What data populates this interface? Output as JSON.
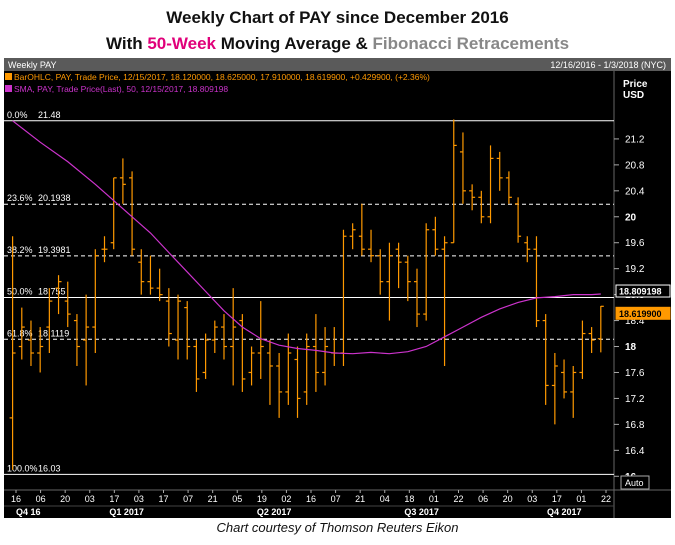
{
  "header": {
    "line1": "Weekly Chart of PAY since December 2016",
    "line2_prefix": "With ",
    "line2_highlight1": "50-Week",
    "line2_mid": " Moving Average & ",
    "line2_highlight2": "Fibonacci Retracements"
  },
  "caption": "Chart courtesy of Thomson Reuters Eikon",
  "chart_data": {
    "type": "ohlc",
    "panel_title": "Weekly PAY",
    "date_range": "12/16/2016 - 1/3/2018 (NYC)",
    "legend": [
      "BarOHLC, PAY, Trade Price, 12/15/2017, 18.120000, 18.625000, 17.910000, 18.619900, +0.429900, (+2.36%)",
      "SMA, PAY, Trade Price(Last), 50, 12/15/2017, 18.809198"
    ],
    "y_axis_title": "Price",
    "y_axis_unit": "USD",
    "yticks": [
      "21.2",
      "20.8",
      "20.4",
      "20",
      "19.6",
      "19.2",
      "18.8",
      "18.4",
      "18",
      "17.6",
      "17.2",
      "16.8",
      "16.4",
      "16"
    ],
    "yrange": [
      15.85,
      21.8
    ],
    "auto_label": "Auto",
    "fib_levels": [
      {
        "label": "0.0%",
        "value": 21.48,
        "value_text": "21.48"
      },
      {
        "label": "23.6%",
        "value": 20.1938,
        "value_text": "20.1938"
      },
      {
        "label": "38.2%",
        "value": 19.3981,
        "value_text": "19.3981"
      },
      {
        "label": "50.0%",
        "value": 18.755,
        "value_text": "18.755"
      },
      {
        "label": "61.8%",
        "value": 18.1119,
        "value_text": "18.1119"
      },
      {
        "label": "100.0%",
        "value": 16.03,
        "value_text": "16.03"
      }
    ],
    "last_values": [
      {
        "value": 18.809198,
        "text": "18.809198",
        "color": "#ffffff"
      },
      {
        "value": 18.6199,
        "text": "18.619900",
        "color": "#ff9900"
      }
    ],
    "x_tick_labels": [
      "16",
      "06",
      "20",
      "03",
      "17",
      "03",
      "17",
      "07",
      "21",
      "05",
      "19",
      "02",
      "16",
      "07",
      "21",
      "04",
      "18",
      "01",
      "22",
      "06",
      "20",
      "03",
      "17",
      "01",
      "22"
    ],
    "quarter_labels": [
      "Q4 16",
      "Q1 2017",
      "Q2 2017",
      "Q3 2017",
      "Q4 2017"
    ],
    "bars": [
      {
        "o": 16.9,
        "h": 19.7,
        "l": 16.1,
        "c": 17.9
      },
      {
        "o": 18.0,
        "h": 18.6,
        "l": 17.8,
        "c": 18.3
      },
      {
        "o": 18.1,
        "h": 18.4,
        "l": 17.7,
        "c": 17.9
      },
      {
        "o": 17.9,
        "h": 18.3,
        "l": 17.6,
        "c": 18.0
      },
      {
        "o": 18.3,
        "h": 18.9,
        "l": 17.9,
        "c": 18.7
      },
      {
        "o": 18.9,
        "h": 19.1,
        "l": 18.5,
        "c": 19.0
      },
      {
        "o": 18.7,
        "h": 19.0,
        "l": 18.3,
        "c": 18.5
      },
      {
        "o": 18.4,
        "h": 18.5,
        "l": 17.7,
        "c": 18.0
      },
      {
        "o": 18.1,
        "h": 18.8,
        "l": 17.4,
        "c": 18.3
      },
      {
        "o": 18.3,
        "h": 19.5,
        "l": 17.9,
        "c": 19.4
      },
      {
        "o": 19.5,
        "h": 19.7,
        "l": 19.3,
        "c": 19.5
      },
      {
        "o": 19.6,
        "h": 20.6,
        "l": 19.5,
        "c": 20.6
      },
      {
        "o": 20.6,
        "h": 20.9,
        "l": 20.2,
        "c": 20.5
      },
      {
        "o": 20.6,
        "h": 20.7,
        "l": 19.4,
        "c": 19.5
      },
      {
        "o": 19.3,
        "h": 19.5,
        "l": 18.8,
        "c": 19.0
      },
      {
        "o": 19.0,
        "h": 19.4,
        "l": 18.8,
        "c": 18.9
      },
      {
        "o": 18.9,
        "h": 19.2,
        "l": 18.7,
        "c": 18.8
      },
      {
        "o": 18.7,
        "h": 18.9,
        "l": 18.0,
        "c": 18.2
      },
      {
        "o": 18.1,
        "h": 18.8,
        "l": 17.8,
        "c": 18.7
      },
      {
        "o": 18.6,
        "h": 18.7,
        "l": 17.8,
        "c": 18.0
      },
      {
        "o": 18.0,
        "h": 18.1,
        "l": 17.3,
        "c": 17.5
      },
      {
        "o": 17.6,
        "h": 18.2,
        "l": 17.5,
        "c": 18.1
      },
      {
        "o": 18.1,
        "h": 18.4,
        "l": 17.9,
        "c": 18.3
      },
      {
        "o": 18.3,
        "h": 18.5,
        "l": 17.8,
        "c": 18.0
      },
      {
        "o": 18.0,
        "h": 18.9,
        "l": 17.4,
        "c": 18.3
      },
      {
        "o": 18.4,
        "h": 18.5,
        "l": 17.3,
        "c": 17.5
      },
      {
        "o": 17.6,
        "h": 18.0,
        "l": 17.4,
        "c": 17.9
      },
      {
        "o": 17.9,
        "h": 18.7,
        "l": 17.5,
        "c": 18.0
      },
      {
        "o": 17.9,
        "h": 18.1,
        "l": 17.1,
        "c": 17.7
      },
      {
        "o": 17.7,
        "h": 17.9,
        "l": 16.9,
        "c": 17.3
      },
      {
        "o": 17.3,
        "h": 18.2,
        "l": 17.1,
        "c": 17.9
      },
      {
        "o": 17.8,
        "h": 18.0,
        "l": 16.9,
        "c": 17.2
      },
      {
        "o": 17.3,
        "h": 18.2,
        "l": 17.1,
        "c": 18.0
      },
      {
        "o": 18.0,
        "h": 18.5,
        "l": 17.3,
        "c": 17.6
      },
      {
        "o": 17.6,
        "h": 18.3,
        "l": 17.4,
        "c": 18.0
      },
      {
        "o": 17.9,
        "h": 18.3,
        "l": 17.7,
        "c": 17.9
      },
      {
        "o": 17.9,
        "h": 19.8,
        "l": 17.7,
        "c": 19.7
      },
      {
        "o": 19.7,
        "h": 19.9,
        "l": 19.5,
        "c": 19.8
      },
      {
        "o": 19.7,
        "h": 20.2,
        "l": 19.4,
        "c": 19.5
      },
      {
        "o": 19.5,
        "h": 19.8,
        "l": 19.3,
        "c": 19.4
      },
      {
        "o": 19.4,
        "h": 19.5,
        "l": 18.8,
        "c": 19.0
      },
      {
        "o": 19.0,
        "h": 19.6,
        "l": 18.4,
        "c": 19.4
      },
      {
        "o": 19.5,
        "h": 19.6,
        "l": 18.9,
        "c": 19.3
      },
      {
        "o": 19.3,
        "h": 19.4,
        "l": 18.7,
        "c": 19.0
      },
      {
        "o": 19.0,
        "h": 19.2,
        "l": 18.3,
        "c": 18.5
      },
      {
        "o": 18.5,
        "h": 19.9,
        "l": 18.4,
        "c": 19.8
      },
      {
        "o": 19.8,
        "h": 20.0,
        "l": 19.4,
        "c": 19.5
      },
      {
        "o": 19.5,
        "h": 19.7,
        "l": 17.7,
        "c": 19.6
      },
      {
        "o": 19.6,
        "h": 21.5,
        "l": 19.6,
        "c": 21.1
      },
      {
        "o": 21.0,
        "h": 21.3,
        "l": 20.2,
        "c": 20.4
      },
      {
        "o": 20.4,
        "h": 20.5,
        "l": 20.1,
        "c": 20.3
      },
      {
        "o": 20.3,
        "h": 20.4,
        "l": 19.9,
        "c": 20.0
      },
      {
        "o": 20.0,
        "h": 21.1,
        "l": 19.9,
        "c": 20.9
      },
      {
        "o": 20.9,
        "h": 21.0,
        "l": 20.4,
        "c": 20.6
      },
      {
        "o": 20.6,
        "h": 20.7,
        "l": 20.2,
        "c": 20.3
      },
      {
        "o": 20.2,
        "h": 20.3,
        "l": 19.6,
        "c": 19.7
      },
      {
        "o": 19.6,
        "h": 19.7,
        "l": 19.3,
        "c": 19.5
      },
      {
        "o": 19.5,
        "h": 19.7,
        "l": 18.3,
        "c": 18.4
      },
      {
        "o": 18.4,
        "h": 18.5,
        "l": 17.1,
        "c": 17.4
      },
      {
        "o": 17.4,
        "h": 17.9,
        "l": 16.8,
        "c": 17.7
      },
      {
        "o": 17.6,
        "h": 17.8,
        "l": 17.2,
        "c": 17.3
      },
      {
        "o": 17.3,
        "h": 17.7,
        "l": 16.9,
        "c": 17.6
      },
      {
        "o": 17.6,
        "h": 18.4,
        "l": 17.5,
        "c": 18.2
      },
      {
        "o": 18.2,
        "h": 18.3,
        "l": 17.9,
        "c": 18.1
      },
      {
        "o": 18.12,
        "h": 18.625,
        "l": 17.91,
        "c": 18.6199
      }
    ],
    "sma_points": [
      {
        "bar": 0,
        "v": 21.48
      },
      {
        "bar": 3,
        "v": 21.15
      },
      {
        "bar": 6,
        "v": 20.85
      },
      {
        "bar": 9,
        "v": 20.5
      },
      {
        "bar": 11,
        "v": 20.25
      },
      {
        "bar": 13,
        "v": 20.0
      },
      {
        "bar": 15,
        "v": 19.75
      },
      {
        "bar": 17,
        "v": 19.45
      },
      {
        "bar": 19,
        "v": 19.15
      },
      {
        "bar": 21,
        "v": 18.85
      },
      {
        "bar": 23,
        "v": 18.55
      },
      {
        "bar": 25,
        "v": 18.3
      },
      {
        "bar": 27,
        "v": 18.12
      },
      {
        "bar": 29,
        "v": 18.02
      },
      {
        "bar": 31,
        "v": 17.97
      },
      {
        "bar": 33,
        "v": 17.94
      },
      {
        "bar": 35,
        "v": 17.9
      },
      {
        "bar": 37,
        "v": 17.89
      },
      {
        "bar": 39,
        "v": 17.91
      },
      {
        "bar": 41,
        "v": 17.89
      },
      {
        "bar": 43,
        "v": 17.92
      },
      {
        "bar": 45,
        "v": 18.0
      },
      {
        "bar": 47,
        "v": 18.15
      },
      {
        "bar": 49,
        "v": 18.3
      },
      {
        "bar": 51,
        "v": 18.45
      },
      {
        "bar": 53,
        "v": 18.58
      },
      {
        "bar": 55,
        "v": 18.68
      },
      {
        "bar": 57,
        "v": 18.75
      },
      {
        "bar": 59,
        "v": 18.77
      },
      {
        "bar": 61,
        "v": 18.8
      },
      {
        "bar": 63,
        "v": 18.8
      },
      {
        "bar": 64,
        "v": 18.809198
      }
    ],
    "colors": {
      "background": "#000000",
      "bars": "#ff9900",
      "sma": "#cc33cc",
      "fib_lines": "#ffffff",
      "axis_text": "#ffffff",
      "header_strip": "#5a5a5a"
    }
  }
}
